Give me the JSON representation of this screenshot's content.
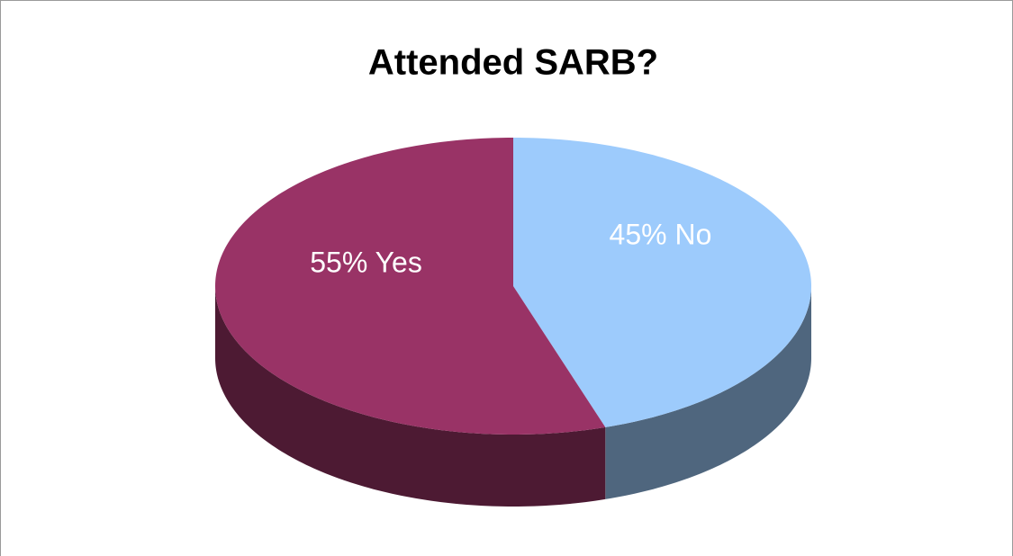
{
  "chart_data": {
    "type": "pie",
    "title": "Attended SARB?",
    "values": [
      45,
      55
    ],
    "value_labels": [
      "45% No",
      "55% Yes"
    ],
    "colors": [
      "#9dcbfc",
      "#993366"
    ]
  }
}
